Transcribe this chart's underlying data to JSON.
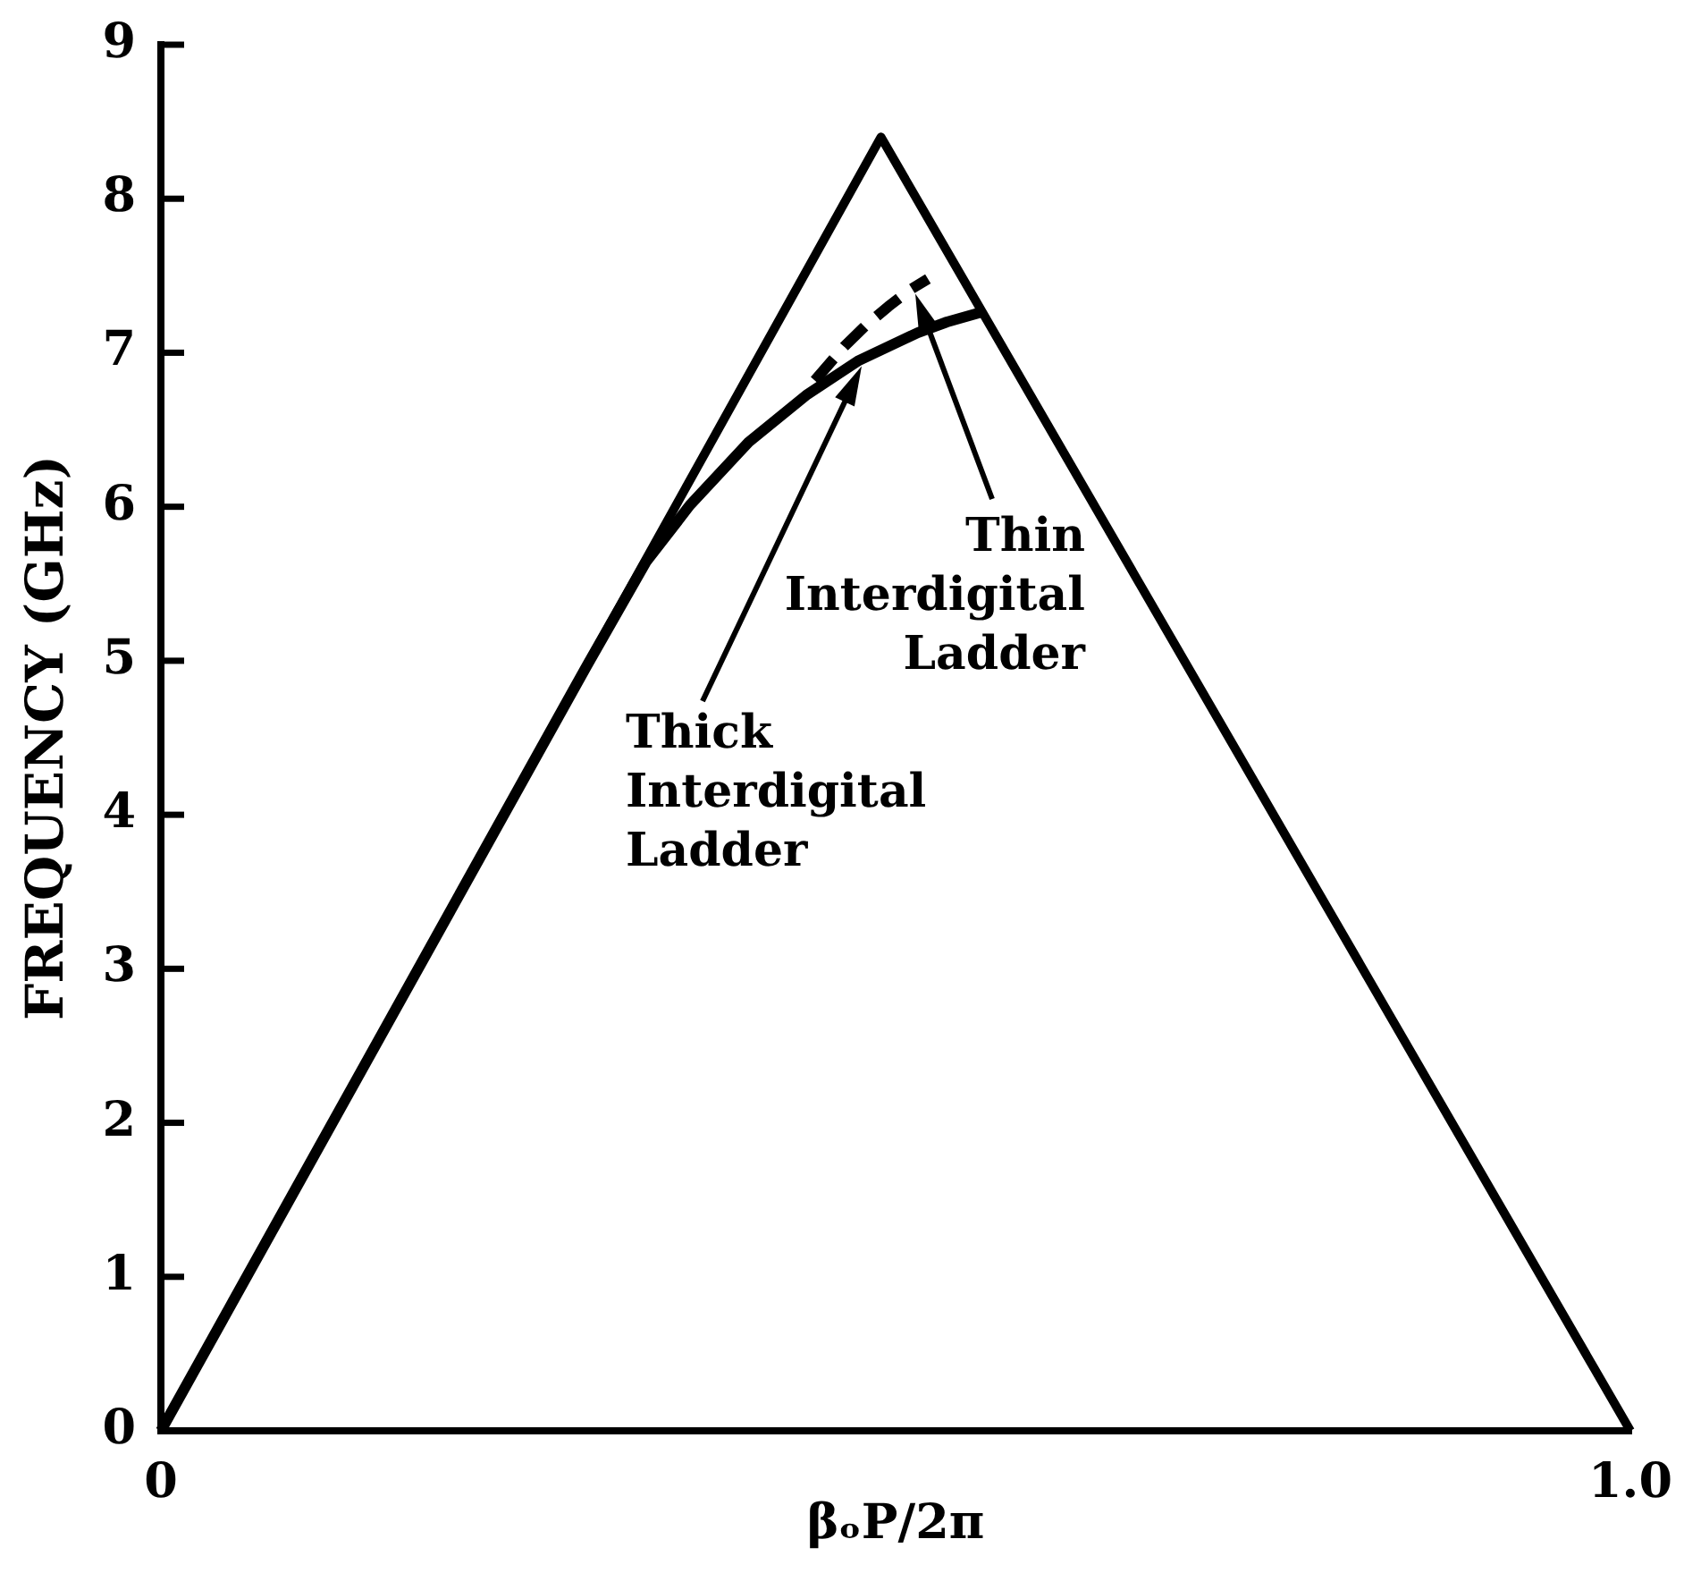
{
  "chart_data": {
    "type": "line",
    "xlabel": "βₒP/2π",
    "ylabel": "FREQUENCY (GHz)",
    "xlim": [
      0,
      1
    ],
    "xticks": [
      0,
      {
        "value": 1,
        "label": "1.0"
      }
    ],
    "ylim": [
      0,
      9
    ],
    "yticks": [
      0,
      1,
      2,
      3,
      4,
      5,
      6,
      7,
      8,
      9
    ],
    "legend": false,
    "grid": false,
    "marker": "none",
    "series": [
      {
        "color": "#000000",
        "x": [
          0,
          0.49,
          1
        ],
        "values": [
          0,
          8.4,
          0
        ]
      },
      {
        "name": "Thick Interdigital Ladder",
        "color": "#000000",
        "x": [
          0,
          0.15,
          0.29,
          0.33,
          0.36,
          0.4,
          0.44,
          0.475,
          0.515,
          0.535,
          0.557
        ],
        "values": [
          0,
          2.57,
          4.97,
          5.64,
          6.01,
          6.42,
          6.73,
          6.95,
          7.13,
          7.2,
          7.26
        ]
      },
      {
        "name": "Thin Interdigital Ladder",
        "color": "#000000",
        "line_style": "dashed",
        "x": [
          0.445,
          0.465,
          0.48,
          0.495,
          0.51,
          0.522
        ],
        "values": [
          6.82,
          7.04,
          7.18,
          7.3,
          7.41,
          7.48
        ]
      }
    ]
  }
}
